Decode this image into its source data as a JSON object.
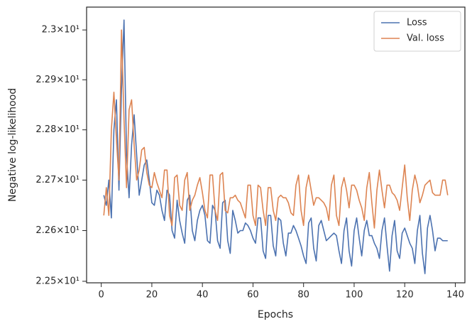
{
  "chart_data": {
    "type": "line",
    "xlabel": "Epochs",
    "ylabel": "Negative log-likelihood",
    "yscale": "log",
    "grid": false,
    "legend": "upper right",
    "xlim": [
      -5.8,
      143.8
    ],
    "xticks": [
      0,
      20,
      40,
      60,
      80,
      100,
      120,
      140
    ],
    "ylim": [
      22.497,
      23.046
    ],
    "yticks": [
      {
        "value": 22.5,
        "label": "2.25×10¹"
      },
      {
        "value": 22.6,
        "label": "2.26×10¹"
      },
      {
        "value": 22.7,
        "label": "2.27×10¹"
      },
      {
        "value": 22.8,
        "label": "2.28×10¹"
      },
      {
        "value": 22.9,
        "label": "2.29×10¹"
      },
      {
        "value": 23.0,
        "label": "2.3×10¹"
      }
    ],
    "x": [
      1,
      2,
      3,
      4,
      5,
      6,
      7,
      8,
      9,
      10,
      11,
      12,
      13,
      14,
      15,
      16,
      17,
      18,
      19,
      20,
      21,
      22,
      23,
      24,
      25,
      26,
      27,
      28,
      29,
      30,
      31,
      32,
      33,
      34,
      35,
      36,
      37,
      38,
      39,
      40,
      41,
      42,
      43,
      44,
      45,
      46,
      47,
      48,
      49,
      50,
      51,
      52,
      53,
      54,
      55,
      56,
      57,
      58,
      59,
      60,
      61,
      62,
      63,
      64,
      65,
      66,
      67,
      68,
      69,
      70,
      71,
      72,
      73,
      74,
      75,
      76,
      77,
      78,
      79,
      80,
      81,
      82,
      83,
      84,
      85,
      86,
      87,
      88,
      89,
      90,
      91,
      92,
      93,
      94,
      95,
      96,
      97,
      98,
      99,
      100,
      101,
      102,
      103,
      104,
      105,
      106,
      107,
      108,
      109,
      110,
      111,
      112,
      113,
      114,
      115,
      116,
      117,
      118,
      119,
      120,
      121,
      122,
      123,
      124,
      125,
      126,
      127,
      128,
      129,
      130,
      131,
      132,
      133,
      134,
      135,
      136,
      137
    ],
    "series": [
      {
        "name": "Loss",
        "color": "#4c72b0",
        "values": [
          22.67,
          22.65,
          22.7,
          22.625,
          22.8,
          22.86,
          22.68,
          22.88,
          23.02,
          22.75,
          22.665,
          22.77,
          22.83,
          22.75,
          22.67,
          22.7,
          22.73,
          22.74,
          22.7,
          22.655,
          22.65,
          22.68,
          22.67,
          22.64,
          22.62,
          22.68,
          22.67,
          22.6,
          22.585,
          22.66,
          22.62,
          22.595,
          22.575,
          22.66,
          22.67,
          22.6,
          22.58,
          22.62,
          22.64,
          22.65,
          22.63,
          22.58,
          22.575,
          22.65,
          22.64,
          22.58,
          22.565,
          22.655,
          22.66,
          22.58,
          22.555,
          22.64,
          22.62,
          22.595,
          22.6,
          22.6,
          22.615,
          22.61,
          22.6,
          22.585,
          22.575,
          22.625,
          22.625,
          22.56,
          22.545,
          22.63,
          22.63,
          22.57,
          22.55,
          22.625,
          22.62,
          22.575,
          22.55,
          22.595,
          22.595,
          22.61,
          22.6,
          22.585,
          22.57,
          22.55,
          22.535,
          22.615,
          22.625,
          22.565,
          22.54,
          22.61,
          22.62,
          22.6,
          22.58,
          22.585,
          22.59,
          22.595,
          22.59,
          22.56,
          22.535,
          22.6,
          22.625,
          22.56,
          22.53,
          22.6,
          22.625,
          22.585,
          22.55,
          22.6,
          22.62,
          22.59,
          22.59,
          22.575,
          22.565,
          22.545,
          22.6,
          22.625,
          22.57,
          22.52,
          22.59,
          22.62,
          22.56,
          22.545,
          22.595,
          22.605,
          22.59,
          22.575,
          22.565,
          22.535,
          22.6,
          22.63,
          22.555,
          22.515,
          22.605,
          22.63,
          22.6,
          22.56,
          22.585,
          22.585,
          22.58,
          22.58,
          22.58
        ]
      },
      {
        "name": "Val. loss",
        "color": "#dd8452",
        "values": [
          22.63,
          22.685,
          22.63,
          22.8,
          22.875,
          22.78,
          22.7,
          23.0,
          22.82,
          22.685,
          22.84,
          22.86,
          22.77,
          22.7,
          22.72,
          22.76,
          22.765,
          22.715,
          22.69,
          22.685,
          22.715,
          22.695,
          22.68,
          22.665,
          22.72,
          22.72,
          22.63,
          22.61,
          22.705,
          22.71,
          22.65,
          22.64,
          22.7,
          22.715,
          22.64,
          22.66,
          22.67,
          22.69,
          22.705,
          22.675,
          22.64,
          22.625,
          22.71,
          22.71,
          22.64,
          22.62,
          22.71,
          22.715,
          22.64,
          22.635,
          22.665,
          22.665,
          22.67,
          22.66,
          22.655,
          22.64,
          22.625,
          22.69,
          22.69,
          22.63,
          22.61,
          22.69,
          22.685,
          22.64,
          22.61,
          22.685,
          22.685,
          22.64,
          22.62,
          22.665,
          22.67,
          22.665,
          22.665,
          22.655,
          22.635,
          22.63,
          22.69,
          22.71,
          22.64,
          22.61,
          22.685,
          22.71,
          22.68,
          22.65,
          22.665,
          22.665,
          22.66,
          22.655,
          22.645,
          22.62,
          22.69,
          22.71,
          22.63,
          22.61,
          22.685,
          22.705,
          22.68,
          22.645,
          22.69,
          22.69,
          22.68,
          22.66,
          22.645,
          22.62,
          22.685,
          22.715,
          22.655,
          22.605,
          22.68,
          22.72,
          22.68,
          22.645,
          22.69,
          22.69,
          22.675,
          22.67,
          22.66,
          22.64,
          22.685,
          22.73,
          22.665,
          22.62,
          22.68,
          22.71,
          22.69,
          22.655,
          22.67,
          22.69,
          22.695,
          22.7,
          22.675,
          22.67,
          22.67,
          22.67,
          22.7,
          22.7,
          22.67
        ]
      }
    ]
  }
}
